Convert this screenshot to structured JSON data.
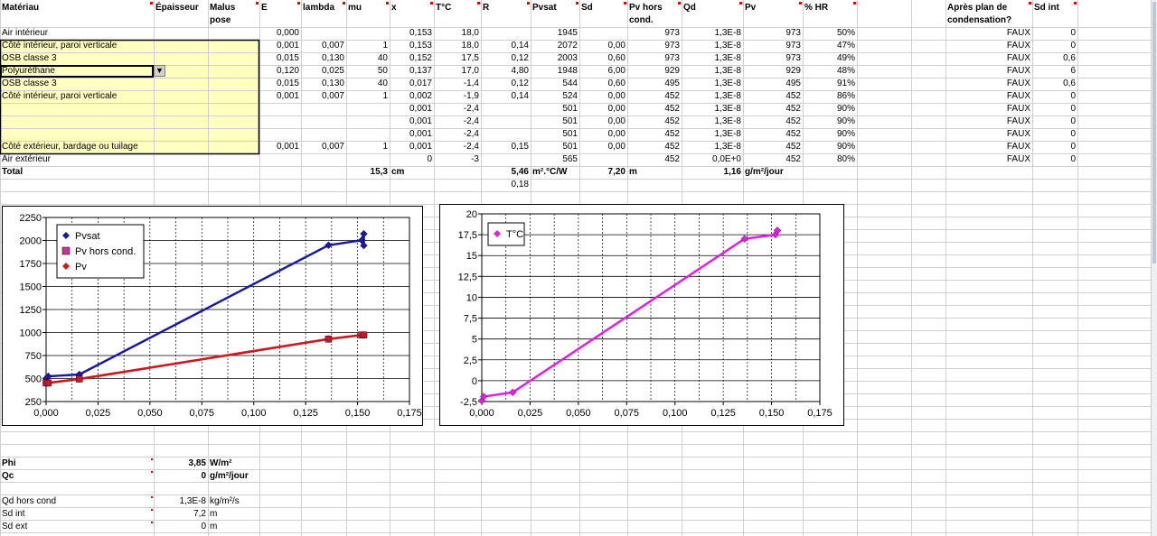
{
  "headers": [
    {
      "col": 0,
      "text": "Matériau"
    },
    {
      "col": 1,
      "text": "Épaisseur"
    },
    {
      "col": 2,
      "text": "Malus"
    },
    {
      "col": 3,
      "text": "E"
    },
    {
      "col": 4,
      "text": "lambda"
    },
    {
      "col": 5,
      "text": "mu"
    },
    {
      "col": 6,
      "text": "x"
    },
    {
      "col": 7,
      "text": "T°C"
    },
    {
      "col": 8,
      "text": "R"
    },
    {
      "col": 9,
      "text": "Pvsat"
    },
    {
      "col": 10,
      "text": "Sd"
    },
    {
      "col": 11,
      "text": "Pv hors"
    },
    {
      "col": 12,
      "text": "Qd"
    },
    {
      "col": 13,
      "text": "Pv"
    },
    {
      "col": 14,
      "text": "% HR"
    },
    {
      "col": 17,
      "text": "Après plan de"
    },
    {
      "col": 18,
      "text": "Sd int"
    }
  ],
  "headers2": [
    {
      "col": 2,
      "text": "pose"
    },
    {
      "col": 11,
      "text": "cond."
    },
    {
      "col": 17,
      "text": "condensation?"
    }
  ],
  "rows": [
    [
      "Air intérieur",
      "",
      "",
      "0,000",
      "",
      "",
      "0,153",
      "18,0",
      "",
      "1945",
      "",
      "973",
      "1,3E-8",
      "973",
      "50%",
      "",
      "",
      "FAUX",
      "0"
    ],
    [
      "Côté intérieur, paroi verticale",
      "",
      "",
      "0,001",
      "0,007",
      "1",
      "0,153",
      "18,0",
      "0,14",
      "2072",
      "0,00",
      "973",
      "1,3E-8",
      "973",
      "47%",
      "",
      "",
      "FAUX",
      "0"
    ],
    [
      "OSB classe 3",
      "",
      "",
      "0,015",
      "0,130",
      "40",
      "0,152",
      "17,5",
      "0,12",
      "2003",
      "0,60",
      "973",
      "1,3E-8",
      "973",
      "49%",
      "",
      "",
      "FAUX",
      "0,6"
    ],
    [
      "Polyuréthane",
      "",
      "",
      "0,120",
      "0,025",
      "50",
      "0,137",
      "17,0",
      "4,80",
      "1948",
      "6,00",
      "929",
      "1,3E-8",
      "929",
      "48%",
      "",
      "",
      "FAUX",
      "6"
    ],
    [
      "OSB classe 3",
      "",
      "",
      "0,015",
      "0,130",
      "40",
      "0,017",
      "-1,4",
      "0,12",
      "544",
      "0,60",
      "495",
      "1,3E-8",
      "495",
      "91%",
      "",
      "",
      "FAUX",
      "0,6"
    ],
    [
      "Côté intérieur, paroi verticale",
      "",
      "",
      "0,001",
      "0,007",
      "1",
      "0,002",
      "-1,9",
      "0,14",
      "524",
      "0,00",
      "452",
      "1,3E-8",
      "452",
      "86%",
      "",
      "",
      "FAUX",
      "0"
    ],
    [
      "",
      "",
      "",
      "",
      "",
      "",
      "0,001",
      "-2,4",
      "",
      "501",
      "0,00",
      "452",
      "1,3E-8",
      "452",
      "90%",
      "",
      "",
      "FAUX",
      "0"
    ],
    [
      "",
      "",
      "",
      "",
      "",
      "",
      "0,001",
      "-2,4",
      "",
      "501",
      "0,00",
      "452",
      "1,3E-8",
      "452",
      "90%",
      "",
      "",
      "FAUX",
      "0"
    ],
    [
      "",
      "",
      "",
      "",
      "",
      "",
      "0,001",
      "-2,4",
      "",
      "501",
      "0,00",
      "452",
      "1,3E-8",
      "452",
      "90%",
      "",
      "",
      "FAUX",
      "0"
    ],
    [
      "Côté extérieur, bardage ou tuilage",
      "",
      "",
      "0,001",
      "0,007",
      "1",
      "0,001",
      "-2,4",
      "0,15",
      "501",
      "0,00",
      "452",
      "1,3E-8",
      "452",
      "90%",
      "",
      "",
      "FAUX",
      "0"
    ],
    [
      "Air extérieur",
      "",
      "",
      "",
      "",
      "",
      "0",
      "-3",
      "",
      "565",
      "",
      "452",
      "0,0E+0",
      "452",
      "80%",
      "",
      "",
      "FAUX",
      "0"
    ]
  ],
  "total": {
    "label": "Total",
    "thickness": "15,3",
    "thickness_unit": "cm",
    "r_total": "5,46",
    "r_unit": "m².°C/W",
    "sd_total": "7,20",
    "sd_unit": "m",
    "qd_total": "1,16",
    "qd_unit": "g/m²/jour",
    "r_extra": "0,18"
  },
  "bottom": [
    {
      "label": "Phi",
      "value": "3,85",
      "unit": "W/m²",
      "bold": true
    },
    {
      "label": "Qc",
      "value": "0",
      "unit": "g/m²/jour",
      "bold": true
    },
    {
      "label": "Qd hors cond",
      "value": "1,3E-8",
      "unit": "kg/m²/s",
      "bold": false
    },
    {
      "label": "Sd int",
      "value": "7,2",
      "unit": "m",
      "bold": false
    },
    {
      "label": "Sd ext",
      "value": "0",
      "unit": "m",
      "bold": false
    }
  ],
  "chart_data": [
    {
      "type": "line",
      "xlim": [
        0,
        0.175
      ],
      "ylim": [
        250,
        2250
      ],
      "xticks": [
        "0,000",
        "0,025",
        "0,050",
        "0,075",
        "0,100",
        "0,125",
        "0,150",
        "0,175"
      ],
      "yticks": [
        "250",
        "500",
        "750",
        "1000",
        "1250",
        "1500",
        "1750",
        "2000",
        "2250"
      ],
      "legend_position": "top-left",
      "series": [
        {
          "name": "Pvsat",
          "color": "#1a1aa0",
          "marker": "diamond",
          "x": [
            0,
            0.001,
            0.016,
            0.136,
            0.152,
            0.153,
            0.153
          ],
          "y": [
            501,
            524,
            544,
            1948,
            2003,
            2072,
            1945
          ]
        },
        {
          "name": "Pv hors cond.",
          "color": "#cc3399",
          "marker": "square",
          "x": [
            0,
            0.001,
            0.016,
            0.136,
            0.152,
            0.153
          ],
          "y": [
            452,
            452,
            495,
            929,
            973,
            973
          ]
        },
        {
          "name": "Pv",
          "color": "#cc1a1a",
          "marker": "diamond",
          "x": [
            0,
            0.001,
            0.016,
            0.136,
            0.152,
            0.153
          ],
          "y": [
            452,
            452,
            495,
            929,
            973,
            973
          ]
        }
      ]
    },
    {
      "type": "line",
      "xlim": [
        0,
        0.175
      ],
      "ylim": [
        -2.5,
        20
      ],
      "xticks": [
        "0,000",
        "0,025",
        "0,050",
        "0,075",
        "0,100",
        "0,125",
        "0,150",
        "0,175"
      ],
      "yticks": [
        "-2,5",
        "0",
        "2,5",
        "5",
        "7,5",
        "10",
        "12,5",
        "15",
        "17,5",
        "20"
      ],
      "legend_position": "top-left",
      "series": [
        {
          "name": "T°C",
          "color": "#e020e0",
          "marker": "diamond",
          "x": [
            0,
            0.001,
            0.016,
            0.136,
            0.152,
            0.153,
            0.153
          ],
          "y": [
            -2.4,
            -1.9,
            -1.4,
            17.0,
            17.5,
            18.0,
            18.0
          ]
        }
      ]
    }
  ]
}
